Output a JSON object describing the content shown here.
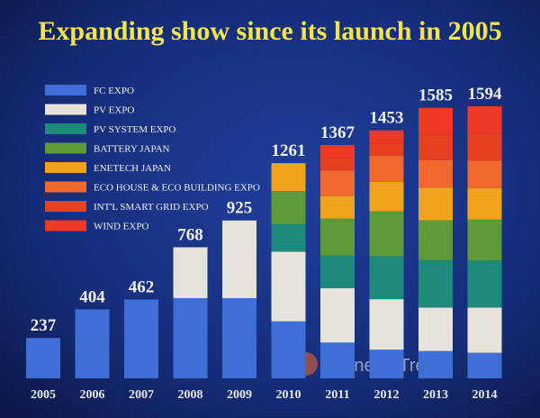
{
  "chart_data": {
    "type": "stacked_bar",
    "title": "Expanding show since its launch in 2005",
    "categories": [
      "2005",
      "2006",
      "2007",
      "2008",
      "2009",
      "2010",
      "2011",
      "2012",
      "2013",
      "2014"
    ],
    "totals": [
      237,
      404,
      462,
      768,
      925,
      1261,
      1367,
      1453,
      1585,
      1594
    ],
    "series": [
      {
        "name": "FC EXPO",
        "color": "#3d6fd6",
        "values": [
          237,
          404,
          462,
          470,
          470,
          334,
          210,
          168,
          160,
          150
        ]
      },
      {
        "name": "PV EXPO",
        "color": "#e6e3da",
        "values": [
          0,
          0,
          0,
          298,
          455,
          408,
          318,
          296,
          255,
          265
        ]
      },
      {
        "name": "PV SYSTEM EXPO",
        "color": "#1e8a7c",
        "values": [
          0,
          0,
          0,
          0,
          0,
          163,
          192,
          252,
          277,
          275
        ]
      },
      {
        "name": "BATTERY JAPAN",
        "color": "#5d9a38",
        "values": [
          0,
          0,
          0,
          0,
          0,
          193,
          216,
          263,
          234,
          240
        ]
      },
      {
        "name": "ENETECH JAPAN",
        "color": "#f0a41e",
        "values": [
          0,
          0,
          0,
          0,
          0,
          163,
          132,
          173,
          192,
          185
        ]
      },
      {
        "name": "ECO HOUSE & ECO BUILDING EXPO",
        "color": "#f0682c",
        "values": [
          0,
          0,
          0,
          0,
          0,
          0,
          150,
          151,
          160,
          160
        ]
      },
      {
        "name": "INT'L SMART GRID EXPO",
        "color": "#e5401f",
        "values": [
          0,
          0,
          0,
          0,
          0,
          0,
          72,
          73,
          149,
          160
        ]
      },
      {
        "name": "WIND EXPO",
        "color": "#ee3a24",
        "values": [
          0,
          0,
          0,
          0,
          0,
          0,
          77,
          77,
          158,
          159
        ]
      }
    ],
    "watermark": "EnergyTrend"
  }
}
